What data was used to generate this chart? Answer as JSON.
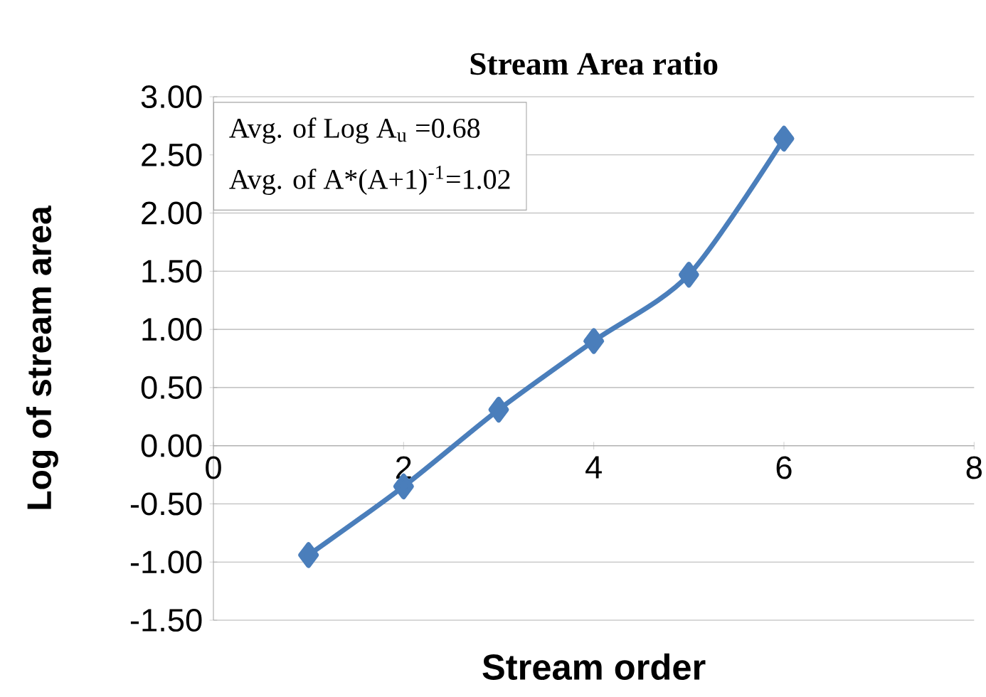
{
  "chart_data": {
    "type": "line",
    "title": "Stream Area ratio",
    "xlabel": "Stream order",
    "ylabel": "Log of stream area",
    "x": [
      1,
      2,
      3,
      4,
      5,
      6
    ],
    "series": [
      {
        "color": "#4a7ebb",
        "values": [
          -0.94,
          -0.35,
          0.31,
          0.9,
          1.47,
          2.64
        ]
      }
    ],
    "xlim": [
      0,
      8
    ],
    "xticks": [
      0,
      2,
      4,
      6,
      8
    ],
    "ylim": [
      -1.5,
      3.0
    ],
    "yticks": [
      {
        "value": -1.5,
        "label": "-1.50"
      },
      {
        "value": -1.0,
        "label": "-1.00"
      },
      {
        "value": -0.5,
        "label": "-0.50"
      },
      {
        "value": 0,
        "label": "0.00"
      },
      {
        "value": 0.5,
        "label": "0.50"
      },
      {
        "value": 1.0,
        "label": "1.00"
      },
      {
        "value": 1.5,
        "label": "1.50"
      },
      {
        "value": 2.0,
        "label": "2.00"
      },
      {
        "value": 2.5,
        "label": "2.50"
      },
      {
        "value": 3.0,
        "label": "3.00"
      }
    ],
    "grid": "y",
    "marker": "diamond",
    "line_style": "solid",
    "annotations": [
      "Avg. of Log A$_{u}$ =0.68",
      "Avg. of A*(A+1)$^{-1}$=1.02"
    ]
  }
}
